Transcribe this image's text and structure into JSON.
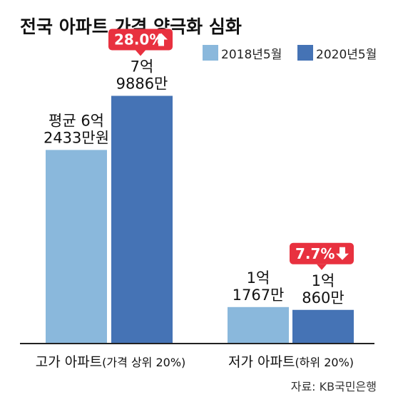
{
  "chart_data": {
    "type": "bar",
    "title": "전국 아파트 가격 양극화 심화",
    "categories": [
      "고가 아파트",
      "저가 아파트"
    ],
    "category_notes": [
      "(가격 상위 20%)",
      "(하위 20%)"
    ],
    "series": [
      {
        "name": "2018년5월",
        "values": [
          62433,
          11767
        ],
        "labels": [
          [
            "평균 6억",
            "2433만원"
          ],
          [
            "1억",
            "1767만"
          ]
        ]
      },
      {
        "name": "2020년5월",
        "values": [
          79886,
          10860
        ],
        "labels": [
          [
            "7억",
            "9886만"
          ],
          [
            "1억",
            "860만"
          ]
        ]
      }
    ],
    "unit": "만원",
    "changes": [
      {
        "text": "28.0%",
        "direction": "up"
      },
      {
        "text": "7.7%",
        "direction": "down"
      }
    ],
    "source": "자료: KB국민은행",
    "ylim": [
      0,
      97000
    ],
    "legend_position": "top-right",
    "grid": false,
    "colors": {
      "series_2018": "#8ab8dc",
      "series_2020": "#4573b5",
      "badge": "#e8313f",
      "baseline": "#222222"
    }
  }
}
